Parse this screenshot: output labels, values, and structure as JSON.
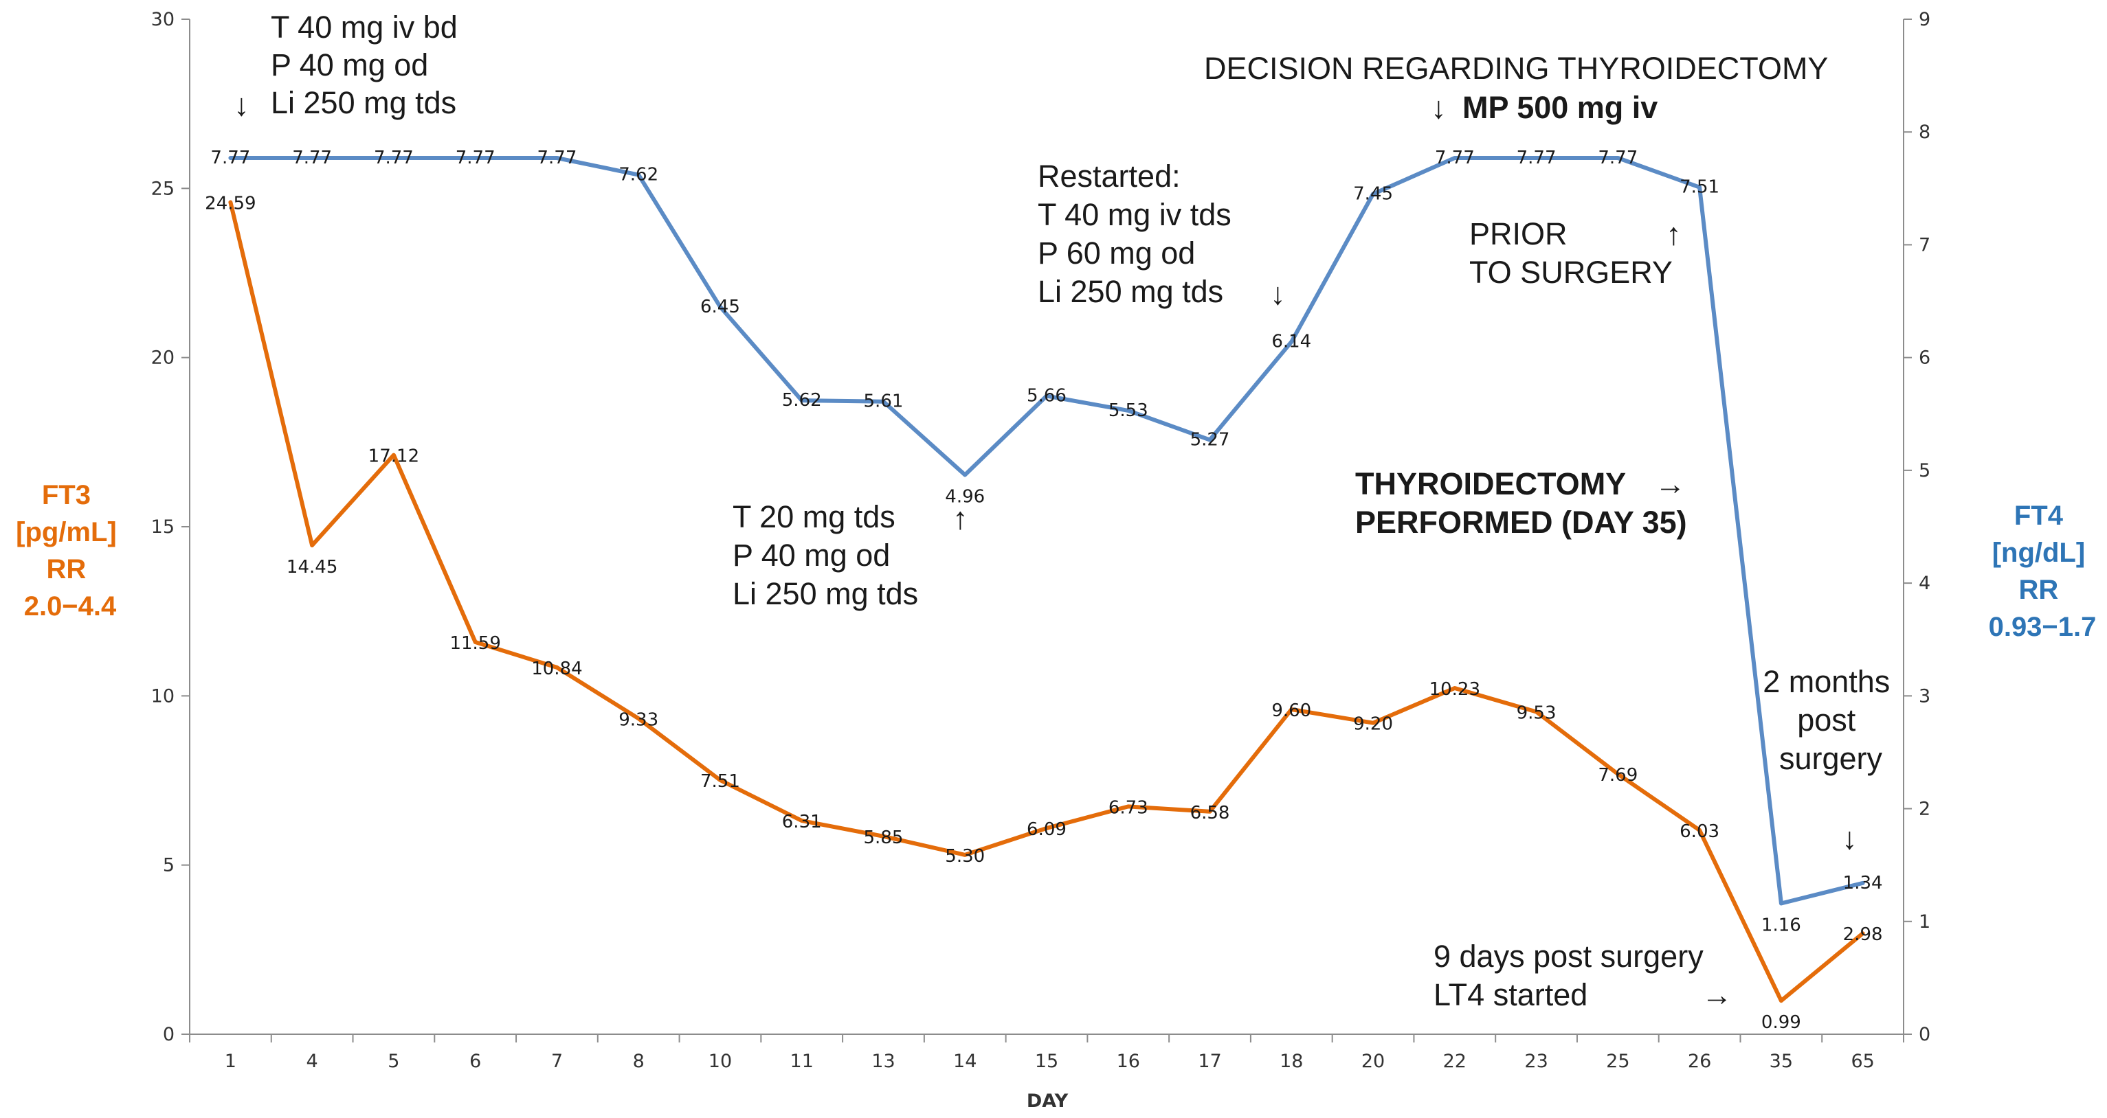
{
  "chart_data": {
    "type": "line",
    "title": "",
    "xlabel": "DAY",
    "categories": [
      "1",
      "4",
      "5",
      "6",
      "7",
      "8",
      "10",
      "11",
      "13",
      "14",
      "15",
      "16",
      "17",
      "18",
      "20",
      "22",
      "23",
      "25",
      "26",
      "35",
      "65"
    ],
    "y_left": {
      "label_lines": [
        "FT3",
        "[pg/mL]",
        "RR",
        "2.0−4.4"
      ],
      "range": [
        0,
        30
      ],
      "ticks": [
        0,
        5,
        10,
        15,
        20,
        25,
        30
      ],
      "color": "#E46C0A"
    },
    "y_right": {
      "label_lines": [
        "FT4",
        "[ng/dL]",
        "RR",
        "0.93−1.7"
      ],
      "range": [
        0,
        9
      ],
      "ticks": [
        0,
        1,
        2,
        3,
        4,
        5,
        6,
        7,
        8,
        9
      ],
      "color": "#2E75B6"
    },
    "series": [
      {
        "key": "ft3",
        "axis": "left",
        "color": "#E46C0A",
        "values": [
          24.59,
          14.45,
          17.12,
          11.59,
          10.84,
          9.33,
          7.51,
          6.31,
          5.85,
          5.3,
          6.09,
          6.73,
          6.58,
          9.6,
          9.2,
          10.23,
          9.53,
          7.69,
          6.03,
          0.99,
          2.98
        ],
        "labels": [
          "24.59",
          "14.45",
          "17.12",
          "11.59",
          "10.84",
          "9.33",
          "7.51",
          "6.31",
          "5.85",
          "5.30",
          "6.09",
          "6.73",
          "6.58",
          "9.60",
          "9.20",
          "10.23",
          "9.53",
          "7.69",
          "6.03",
          "0.99",
          "2.98"
        ]
      },
      {
        "key": "ft4",
        "axis": "right",
        "color": "#5B8BC5",
        "values": [
          7.77,
          7.77,
          7.77,
          7.77,
          7.77,
          7.62,
          6.45,
          5.62,
          5.61,
          4.96,
          5.66,
          5.53,
          5.27,
          6.14,
          7.45,
          7.77,
          7.77,
          7.77,
          7.51,
          1.16,
          1.34
        ],
        "labels": [
          "7.77",
          "7.77",
          "7.77",
          "7.77",
          "7.77",
          "7.62",
          "6.45",
          "5.62",
          "5.61",
          "4.96",
          "5.66",
          "5.53",
          "5.27",
          "6.14",
          "7.45",
          "7.77",
          "7.77",
          "7.77",
          "7.51",
          "1.16",
          "1.34"
        ]
      }
    ],
    "grid": false,
    "legend": "none",
    "annotations": [
      {
        "key": "a1",
        "lines": [
          "T 40 mg  iv bd",
          "P 40 mg  od",
          "Li 250 mg  tds"
        ],
        "arrow": "↓"
      },
      {
        "key": "a2",
        "lines": [
          "DECISION REGARDING THYROIDECTOMY"
        ],
        "arrow": "↓",
        "bold_text": "MP 500 mg iv"
      },
      {
        "key": "a3",
        "lines": [
          "Restarted:",
          "T 40 mg  iv tds",
          "P 60 mg  od",
          "Li 250 mg  tds"
        ],
        "arrow": "↓"
      },
      {
        "key": "a4",
        "lines": [
          "PRIOR",
          "TO SURGERY"
        ],
        "arrow": "↑"
      },
      {
        "key": "a5",
        "lines": [
          "T 20 mg  tds",
          "P 40 mg  od",
          "Li 250 mg  tds"
        ],
        "arrow": "↑"
      },
      {
        "key": "a6",
        "lines": [
          "THYROIDECTOMY",
          "PERFORMED (DAY 35)"
        ],
        "arrow": "→"
      },
      {
        "key": "a7",
        "lines": [
          "2 months",
          "post",
          "surgery"
        ],
        "arrow": "↓"
      },
      {
        "key": "a8",
        "lines": [
          "9 days post surgery",
          "LT4 started"
        ],
        "arrow": "→"
      }
    ]
  }
}
